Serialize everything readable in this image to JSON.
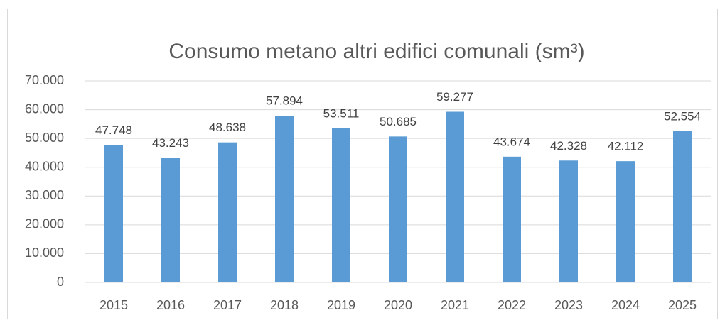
{
  "chart_data": {
    "type": "bar",
    "title": "Consumo metano altri edifici comunali (sm³)",
    "categories": [
      "2015",
      "2016",
      "2017",
      "2018",
      "2019",
      "2020",
      "2021",
      "2022",
      "2023",
      "2024",
      "2025"
    ],
    "values": [
      47748,
      43243,
      48638,
      57894,
      53511,
      50685,
      59277,
      43674,
      42328,
      42112,
      52554
    ],
    "value_labels": [
      "47.748",
      "43.243",
      "48.638",
      "57.894",
      "53.511",
      "50.685",
      "59.277",
      "43.674",
      "42.328",
      "42.112",
      "52.554"
    ],
    "color": "#5b9bd5",
    "ylim": [
      0,
      70000
    ],
    "yticks": [
      0,
      {
        "value": 10000,
        "label": "10.000"
      },
      {
        "value": 20000,
        "label": "20.000"
      },
      {
        "value": 30000,
        "label": "30.000"
      },
      {
        "value": 40000,
        "label": "40.000"
      },
      {
        "value": 50000,
        "label": "50.000"
      },
      {
        "value": 60000,
        "label": "60.000"
      },
      {
        "value": 70000,
        "label": "70.000"
      }
    ],
    "grid": true
  }
}
